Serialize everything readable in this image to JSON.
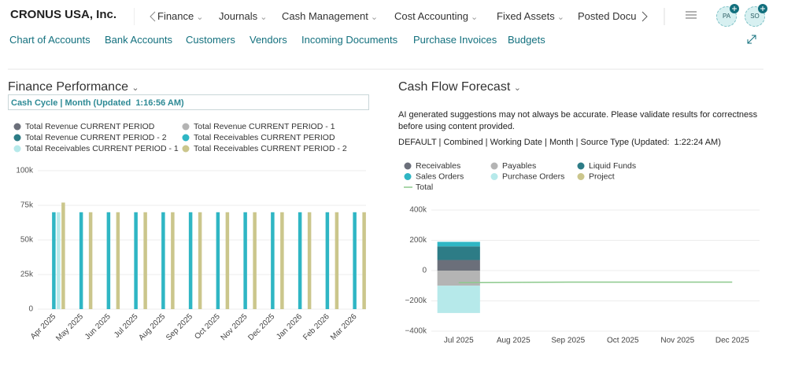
{
  "header": {
    "company": "CRONUS USA, Inc.",
    "nav": [
      "Finance",
      "Journals",
      "Cash Management",
      "Cost Accounting",
      "Fixed Assets",
      "Posted Docu"
    ],
    "avatars": [
      "PA",
      "SO"
    ]
  },
  "actions": [
    "Chart of Accounts",
    "Bank Accounts",
    "Customers",
    "Vendors",
    "Incoming Documents",
    "Purchase Invoices",
    "Budgets"
  ],
  "finance": {
    "title": "Finance Performance",
    "subtitle": "Cash Cycle | Month (Updated  1:16:56 AM)",
    "chart": {
      "type": "bar",
      "categories": [
        "Apr 2025",
        "May 2025",
        "Jun 2025",
        "Jul 2025",
        "Aug 2025",
        "Sep 2025",
        "Oct 2025",
        "Nov 2025",
        "Dec 2025",
        "Jan 2026",
        "Feb 2026",
        "Mar 2026"
      ],
      "series": [
        {
          "name": "Total Revenue CURRENT PERIOD",
          "color": "#6b6f7a",
          "values": [
            0,
            0,
            0,
            0,
            0,
            0,
            0,
            0,
            0,
            0,
            0,
            0
          ]
        },
        {
          "name": "Total Revenue CURRENT PERIOD - 1",
          "color": "#b4b4b4",
          "values": [
            0,
            0,
            0,
            0,
            0,
            0,
            0,
            0,
            0,
            0,
            0,
            0
          ]
        },
        {
          "name": "Total Revenue CURRENT PERIOD - 2",
          "color": "#2d7c86",
          "values": [
            0,
            0,
            0,
            0,
            0,
            0,
            0,
            0,
            0,
            0,
            0,
            0
          ]
        },
        {
          "name": "Total Receivables CURRENT PERIOD",
          "color": "#2fb6c4",
          "values": [
            70000,
            70000,
            70000,
            70000,
            70000,
            70000,
            70000,
            70000,
            70000,
            70000,
            70000,
            70000
          ]
        },
        {
          "name": "Total Receivables CURRENT PERIOD - 1",
          "color": "#b6e9ea",
          "values": [
            70000,
            0,
            0,
            0,
            0,
            0,
            0,
            0,
            0,
            0,
            0,
            0
          ]
        },
        {
          "name": "Total Receivables CURRENT PERIOD - 2",
          "color": "#cbc68c",
          "values": [
            77000,
            70000,
            70000,
            70000,
            70000,
            70000,
            70000,
            70000,
            70000,
            70000,
            70000,
            70000
          ]
        }
      ],
      "ylim": [
        0,
        100000
      ],
      "yticks": [
        0,
        {
          "value": 25000,
          "label": "25k"
        },
        {
          "value": 50000,
          "label": "50k"
        },
        {
          "value": 75000,
          "label": "75k"
        },
        {
          "value": 100000,
          "label": "100k"
        }
      ],
      "grid": true
    }
  },
  "cashflow": {
    "title": "Cash Flow Forecast",
    "notice": "AI generated suggestions may not always be accurate. Please validate results for correctness before using content provided.",
    "subtitle": "DEFAULT | Combined | Working Date | Month | Source Type (Updated:  1:22:24 AM)",
    "chart": {
      "type": "bar",
      "stacked": true,
      "categories": [
        "Jul 2025",
        "Aug 2025",
        "Sep 2025",
        "Oct 2025",
        "Nov 2025",
        "Dec 2025"
      ],
      "series": [
        {
          "name": "Receivables",
          "color": "#6b6f7a",
          "values": [
            70000,
            0,
            0,
            0,
            0,
            0
          ]
        },
        {
          "name": "Payables",
          "color": "#b4b4b4",
          "values": [
            -100000,
            0,
            0,
            0,
            0,
            0
          ]
        },
        {
          "name": "Liquid Funds",
          "color": "#2d7c86",
          "values": [
            90000,
            0,
            0,
            0,
            0,
            0
          ]
        },
        {
          "name": "Sales Orders",
          "color": "#2fb6c4",
          "values": [
            30000,
            0,
            0,
            0,
            0,
            0
          ]
        },
        {
          "name": "Purchase Orders",
          "color": "#b6e9ea",
          "values": [
            -180000,
            0,
            0,
            0,
            0,
            0
          ]
        },
        {
          "name": "Project",
          "color": "#cbc68c",
          "values": [
            0,
            0,
            0,
            0,
            0,
            0
          ]
        },
        {
          "name": "Total",
          "color": "#8cc98c",
          "type": "line",
          "values": [
            -80000,
            -78000,
            -76000,
            -76000,
            -76000,
            -76000
          ]
        }
      ],
      "ylim": [
        -400000,
        400000
      ],
      "yticks": [
        {
          "value": -400000,
          "label": "−400k"
        },
        {
          "value": -200000,
          "label": "−200k"
        },
        0,
        {
          "value": 200000,
          "label": "200k"
        },
        {
          "value": 400000,
          "label": "400k"
        }
      ],
      "grid": true
    }
  }
}
